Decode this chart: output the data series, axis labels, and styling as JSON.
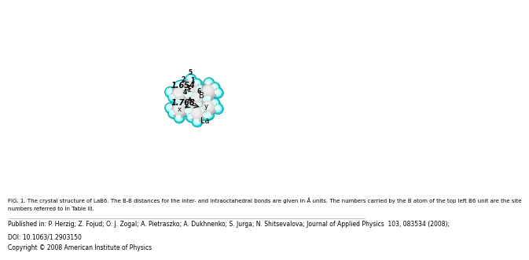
{
  "fig_caption_line1": "FIG. 1. The crystal structure of LaB6. The B-B distances for the inter- and intraoctahedral bonds are given in Å units. The numbers carried by the B atom of the top left B6 unit are the site",
  "fig_caption_line2": "numbers referred to in Table III.",
  "published_line1": "Published in: P. Herzig; Z. Fojud; O. J. Zogal; A. Pietraszko; A. Dukhnenko; S. Jurga; N. Shitsevalova; Journal of Applied Physics  103, 083534 (2008);",
  "published_line2": "DOI: 10.1063/1.2903150",
  "published_line3": "Copyright © 2008 American Institute of Physics",
  "background_color": "#ffffff",
  "bond_color": "#b07898",
  "boron_color": "#22cccc",
  "la_color": "#cccccc",
  "caption_fontsize": 5.0,
  "ref_fontsize": 5.5,
  "text_color": "#000000",
  "image_xlim": [
    0,
    10
  ],
  "image_ylim": [
    0,
    9
  ]
}
